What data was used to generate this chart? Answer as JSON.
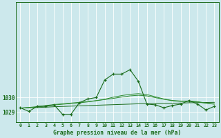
{
  "title": "Graphe pression niveau de la mer (hPa)",
  "background_color": "#cce8ec",
  "grid_color": "#ffffff",
  "line_color_dark": "#1a6b1a",
  "line_color_mid": "#2d8b2d",
  "xlim": [
    -0.5,
    23.5
  ],
  "ylim": [
    1028.3,
    1036.5
  ],
  "yticks": [
    1029,
    1030
  ],
  "xticks": [
    0,
    1,
    2,
    3,
    4,
    5,
    6,
    7,
    8,
    9,
    10,
    11,
    12,
    13,
    14,
    15,
    16,
    17,
    18,
    19,
    20,
    21,
    22,
    23
  ],
  "hours": [
    0,
    1,
    2,
    3,
    4,
    5,
    6,
    7,
    8,
    9,
    10,
    11,
    12,
    13,
    14,
    15,
    16,
    17,
    18,
    19,
    20,
    21,
    22,
    23
  ],
  "pressure_spiky": [
    1029.3,
    1029.05,
    1029.4,
    1029.4,
    1029.5,
    1028.85,
    1028.85,
    1029.65,
    1029.9,
    1030.0,
    1031.2,
    1031.6,
    1031.6,
    1031.9,
    1031.1,
    1029.55,
    1029.5,
    1029.3,
    1029.45,
    1029.55,
    1029.8,
    1029.55,
    1029.15,
    1029.4
  ],
  "pressure_smooth1": [
    1029.28,
    1029.3,
    1029.35,
    1029.42,
    1029.49,
    1029.54,
    1029.59,
    1029.64,
    1029.7,
    1029.78,
    1029.88,
    1030.02,
    1030.13,
    1030.22,
    1030.26,
    1030.2,
    1030.05,
    1029.9,
    1029.8,
    1029.76,
    1029.76,
    1029.72,
    1029.62,
    1029.56
  ],
  "pressure_smooth2": [
    1029.28,
    1029.32,
    1029.38,
    1029.45,
    1029.52,
    1029.57,
    1029.62,
    1029.67,
    1029.72,
    1029.79,
    1029.86,
    1029.94,
    1030.03,
    1030.11,
    1030.15,
    1030.11,
    1029.99,
    1029.88,
    1029.78,
    1029.73,
    1029.73,
    1029.69,
    1029.61,
    1029.54
  ],
  "pressure_linear": [
    1029.28,
    1029.3,
    1029.32,
    1029.34,
    1029.37,
    1029.39,
    1029.41,
    1029.43,
    1029.45,
    1029.47,
    1029.49,
    1029.51,
    1029.53,
    1029.55,
    1029.57,
    1029.58,
    1029.59,
    1029.6,
    1029.61,
    1029.62,
    1029.64,
    1029.65,
    1029.66,
    1029.67
  ]
}
